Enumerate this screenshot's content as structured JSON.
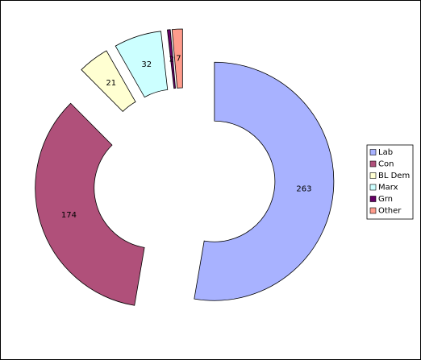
{
  "chart_data": {
    "type": "doughnut",
    "categories": [
      "Lab",
      "Con",
      "BL Dem",
      "Marx",
      "Grn",
      "Other"
    ],
    "values": [
      263,
      174,
      21,
      32,
      2,
      7
    ],
    "colors": [
      "#a8b2ff",
      "#b0507a",
      "#ffffd2",
      "#ccffff",
      "#660066",
      "#ff9c8c"
    ],
    "legend": "right"
  }
}
